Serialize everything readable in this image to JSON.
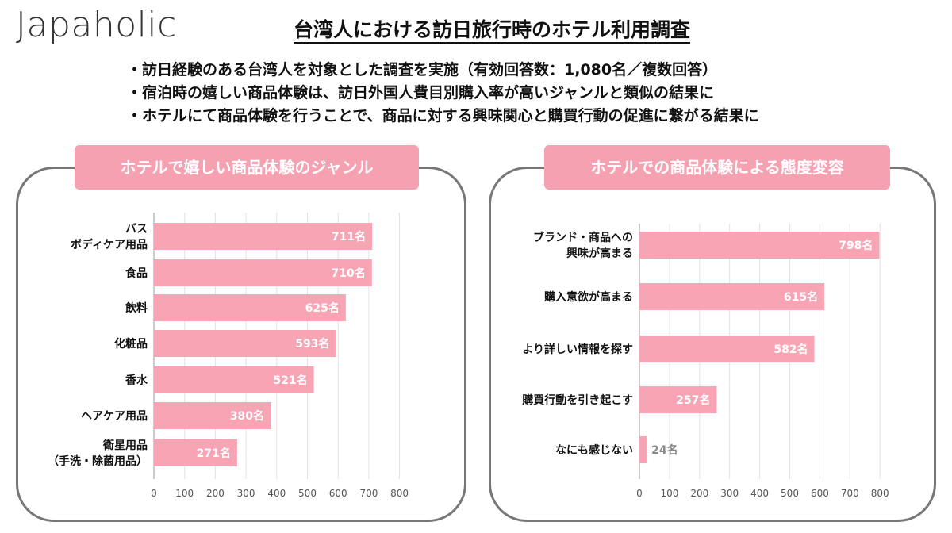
{
  "brand": "Japaholic",
  "title": "台湾人における訪日旅行時のホテル利用調査",
  "bullets": [
    "・訪日経験のある台湾人を対象とした調査を実施（有効回答数：1,080名／複数回答）",
    "・宿泊時の嬉しい商品体験は、訪日外国人費目別購入率が高いジャンルと類似の結果に",
    "・ホテルにて商品体験を行うことで、商品に対する興味関心と購買行動の促進に繋がる結果に"
  ],
  "bar_color": "#f7a5b5",
  "chart_data": [
    {
      "type": "bar",
      "orientation": "horizontal",
      "title": "ホテルで嬉しい商品体験のジャンル",
      "categories": [
        [
          "バス",
          "ボディケア用品"
        ],
        [
          "食品"
        ],
        [
          "飲料"
        ],
        [
          "化粧品"
        ],
        [
          "香水"
        ],
        [
          "ヘアケア用品"
        ],
        [
          "衛星用品",
          "（手洗・除菌用品）"
        ]
      ],
      "values": [
        711,
        710,
        625,
        593,
        521,
        380,
        271
      ],
      "value_labels": [
        "711名",
        "710名",
        "625名",
        "593名",
        "521名",
        "380名",
        "271名"
      ],
      "xlim": [
        0,
        800
      ],
      "xticks": [
        0,
        100,
        200,
        300,
        400,
        500,
        600,
        700,
        800
      ],
      "grid": true
    },
    {
      "type": "bar",
      "orientation": "horizontal",
      "title": "ホテルでの商品体験による態度変容",
      "categories": [
        [
          "ブランド・商品への",
          "興味が高まる"
        ],
        [
          "購入意欲が高まる"
        ],
        [
          "より詳しい情報を探す"
        ],
        [
          "購買行動を引き起こす"
        ],
        [
          "なにも感じない"
        ]
      ],
      "values": [
        798,
        615,
        582,
        257,
        24
      ],
      "value_labels": [
        "798名",
        "615名",
        "582名",
        "257名",
        "24名"
      ],
      "xlim": [
        0,
        800
      ],
      "xticks": [
        0,
        100,
        200,
        300,
        400,
        500,
        600,
        700,
        800
      ],
      "grid": true
    }
  ]
}
